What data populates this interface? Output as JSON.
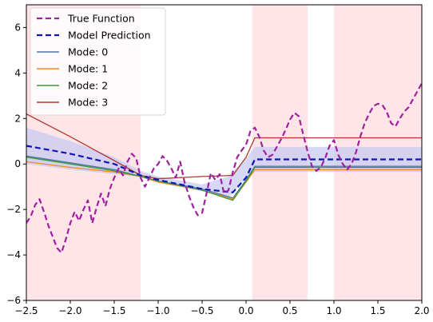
{
  "chart_data": {
    "type": "line",
    "xlim": [
      -2.5,
      2.0
    ],
    "ylim": [
      -6,
      7
    ],
    "x_ticks": [
      -2.5,
      -2.0,
      -1.5,
      -1.0,
      -0.5,
      0.0,
      0.5,
      1.0,
      1.5,
      2.0
    ],
    "x_tick_labels": [
      "−2.5",
      "−2.0",
      "−1.5",
      "−1.0",
      "−0.5",
      "0.0",
      "0.5",
      "1.0",
      "1.5",
      "2.0"
    ],
    "y_ticks": [
      -6,
      -4,
      -2,
      0,
      2,
      4,
      6
    ],
    "y_tick_labels": [
      "−6",
      "−4",
      "−2",
      "0",
      "2",
      "4",
      "6"
    ],
    "grid": false,
    "legend_position": "top-left",
    "shaded_regions": [
      {
        "x0": -2.5,
        "x1": -1.2,
        "color": "#ffe5e8"
      },
      {
        "x0": 0.07,
        "x1": 0.7,
        "color": "#ffe5e8"
      },
      {
        "x0": 1.0,
        "x1": 2.0,
        "color": "#ffe5e8"
      }
    ],
    "uncertainty_band": {
      "color": "#c9c9f3",
      "x": [
        -2.5,
        -2.0,
        -1.5,
        -1.2,
        -1.0,
        -0.5,
        -0.2,
        0.0,
        0.1,
        0.5,
        1.0,
        1.5,
        2.0
      ],
      "lower": [
        0.0,
        -0.25,
        -0.45,
        -0.55,
        -0.75,
        -1.2,
        -1.5,
        -0.6,
        -0.35,
        -0.35,
        -0.35,
        -0.35,
        -0.35
      ],
      "upper": [
        1.6,
        1.0,
        0.3,
        -0.3,
        -0.55,
        -0.9,
        -0.55,
        0.25,
        0.75,
        0.75,
        0.75,
        0.75,
        0.75
      ]
    },
    "series": [
      {
        "name": "True Function",
        "color": "#a020a0",
        "style": "dashed",
        "width": 2.2,
        "x": [
          -2.5,
          -2.45,
          -2.4,
          -2.35,
          -2.3,
          -2.25,
          -2.2,
          -2.15,
          -2.1,
          -2.05,
          -2.0,
          -1.95,
          -1.9,
          -1.85,
          -1.8,
          -1.75,
          -1.7,
          -1.65,
          -1.6,
          -1.55,
          -1.5,
          -1.45,
          -1.4,
          -1.35,
          -1.3,
          -1.25,
          -1.2,
          -1.15,
          -1.1,
          -1.05,
          -1.0,
          -0.95,
          -0.9,
          -0.85,
          -0.8,
          -0.75,
          -0.7,
          -0.65,
          -0.6,
          -0.55,
          -0.5,
          -0.45,
          -0.4,
          -0.35,
          -0.3,
          -0.25,
          -0.2,
          -0.15,
          -0.1,
          -0.05,
          0.0,
          0.05,
          0.1,
          0.15,
          0.2,
          0.25,
          0.3,
          0.35,
          0.4,
          0.45,
          0.5,
          0.55,
          0.6,
          0.65,
          0.7,
          0.75,
          0.8,
          0.85,
          0.9,
          0.95,
          1.0,
          1.05,
          1.1,
          1.15,
          1.2,
          1.25,
          1.3,
          1.35,
          1.4,
          1.45,
          1.5,
          1.55,
          1.6,
          1.65,
          1.7,
          1.75,
          1.8,
          1.85,
          1.9,
          1.95,
          2.0
        ],
        "y": [
          -2.6,
          -2.3,
          -1.8,
          -1.55,
          -2.1,
          -2.7,
          -3.2,
          -3.7,
          -3.9,
          -3.3,
          -2.6,
          -2.1,
          -2.5,
          -2.0,
          -1.6,
          -2.6,
          -1.9,
          -1.3,
          -1.85,
          -1.1,
          -0.6,
          -0.2,
          -0.5,
          0.1,
          0.45,
          0.25,
          -0.6,
          -1.0,
          -0.6,
          -0.2,
          0.0,
          0.35,
          0.15,
          -0.2,
          -0.6,
          0.1,
          -0.8,
          -1.4,
          -1.9,
          -2.25,
          -2.15,
          -1.3,
          -0.4,
          -0.7,
          -0.45,
          -1.3,
          -1.15,
          -0.35,
          0.3,
          0.6,
          0.85,
          1.45,
          1.6,
          1.2,
          0.6,
          0.3,
          0.4,
          0.75,
          1.1,
          1.5,
          1.95,
          2.25,
          2.1,
          1.3,
          0.55,
          -0.1,
          -0.3,
          -0.15,
          0.25,
          0.8,
          1.05,
          0.4,
          0.0,
          -0.25,
          0.0,
          0.5,
          1.2,
          1.8,
          2.2,
          2.55,
          2.65,
          2.6,
          2.3,
          1.8,
          1.65,
          2.0,
          2.3,
          2.5,
          2.85,
          3.2,
          3.55
        ]
      },
      {
        "name": "Model Prediction",
        "color": "#0a16b8",
        "style": "dashed",
        "width": 2.2,
        "x": [
          -2.5,
          -2.0,
          -1.5,
          -1.2,
          -1.0,
          -0.5,
          -0.15,
          0.0,
          0.1,
          0.5,
          1.0,
          1.5,
          2.0
        ],
        "y": [
          0.8,
          0.45,
          0.0,
          -0.5,
          -0.7,
          -1.1,
          -1.25,
          -0.6,
          0.2,
          0.2,
          0.2,
          0.2,
          0.2
        ]
      },
      {
        "name": "Mode: 0",
        "color": "#4e73a8",
        "style": "solid",
        "width": 1.3,
        "x": [
          -2.5,
          -2.0,
          -1.5,
          -1.2,
          -1.0,
          -0.5,
          -0.15,
          0.0,
          0.1,
          0.5,
          1.0,
          1.5,
          2.0
        ],
        "y": [
          0.35,
          0.05,
          -0.25,
          -0.55,
          -0.75,
          -1.1,
          -1.5,
          -0.7,
          -0.1,
          -0.1,
          -0.1,
          -0.1,
          -0.1
        ]
      },
      {
        "name": "Mode: 1",
        "color": "#f28a1e",
        "style": "solid",
        "width": 1.3,
        "x": [
          -2.5,
          -2.0,
          -1.5,
          -1.2,
          -1.0,
          -0.5,
          -0.15,
          0.0,
          0.1,
          0.5,
          1.0,
          1.5,
          2.0
        ],
        "y": [
          0.1,
          -0.15,
          -0.35,
          -0.55,
          -0.8,
          -1.15,
          -1.55,
          -0.8,
          -0.25,
          -0.25,
          -0.25,
          -0.25,
          -0.25
        ]
      },
      {
        "name": "Mode: 2",
        "color": "#3a9a3a",
        "style": "solid",
        "width": 1.3,
        "x": [
          -2.5,
          -2.0,
          -1.5,
          -1.2,
          -1.0,
          -0.5,
          -0.15,
          0.0,
          0.1,
          0.5,
          1.0,
          1.5,
          2.0
        ],
        "y": [
          0.3,
          0.0,
          -0.3,
          -0.55,
          -0.75,
          -1.15,
          -1.6,
          -0.75,
          -0.15,
          -0.15,
          -0.15,
          -0.15,
          -0.15
        ]
      },
      {
        "name": "Mode: 3",
        "color": "#b03a2e",
        "style": "solid",
        "width": 1.3,
        "x": [
          -2.5,
          -2.0,
          -1.5,
          -1.2,
          -1.0,
          -0.5,
          -0.15,
          0.0,
          0.1,
          0.5,
          1.0,
          1.5,
          2.0
        ],
        "y": [
          2.2,
          1.2,
          0.15,
          -0.5,
          -0.65,
          -0.55,
          -0.5,
          0.3,
          1.15,
          1.15,
          1.15,
          1.15,
          1.15
        ]
      }
    ]
  }
}
